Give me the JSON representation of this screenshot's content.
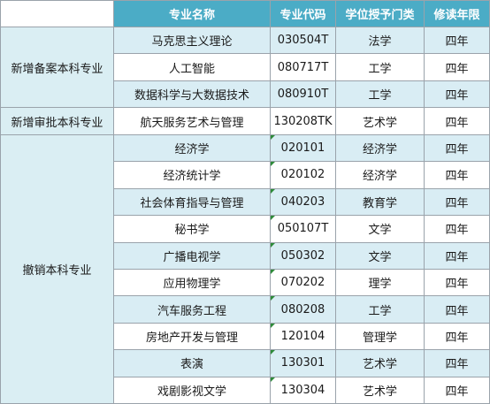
{
  "header": {
    "blank": "",
    "name": "专业名称",
    "code": "专业代码",
    "degree": "学位授予门类",
    "years": "修读年限"
  },
  "groups": [
    {
      "category": "新增备案本科专业",
      "rows": [
        {
          "name": "马克思主义理论",
          "code": "030504T",
          "degree": "法学",
          "years": "四年"
        },
        {
          "name": "人工智能",
          "code": "080717T",
          "degree": "工学",
          "years": "四年"
        },
        {
          "name": "数据科学与大数据技术",
          "code": "080910T",
          "degree": "工学",
          "years": "四年"
        }
      ]
    },
    {
      "category": "新增审批本科专业",
      "rows": [
        {
          "name": "航天服务艺术与管理",
          "code": "130208TK",
          "degree": "艺术学",
          "years": "四年"
        }
      ]
    },
    {
      "category": "撤销本科专业",
      "rows": [
        {
          "name": "经济学",
          "code": "020101",
          "degree": "经济学",
          "years": "四年"
        },
        {
          "name": "经济统计学",
          "code": "020102",
          "degree": "经济学",
          "years": "四年"
        },
        {
          "name": "社会体育指导与管理",
          "code": "040203",
          "degree": "教育学",
          "years": "四年"
        },
        {
          "name": "秘书学",
          "code": "050107T",
          "degree": "文学",
          "years": "四年"
        },
        {
          "name": "广播电视学",
          "code": "050302",
          "degree": "文学",
          "years": "四年"
        },
        {
          "name": "应用物理学",
          "code": "070202",
          "degree": "理学",
          "years": "四年"
        },
        {
          "name": "汽车服务工程",
          "code": "080208",
          "degree": "工学",
          "years": "四年"
        },
        {
          "name": "房地产开发与管理",
          "code": "120104",
          "degree": "管理学",
          "years": "四年"
        },
        {
          "name": "表演",
          "code": "130301",
          "degree": "艺术学",
          "years": "四年"
        },
        {
          "name": "戏剧影视文学",
          "code": "130304",
          "degree": "艺术学",
          "years": "四年"
        }
      ]
    }
  ]
}
